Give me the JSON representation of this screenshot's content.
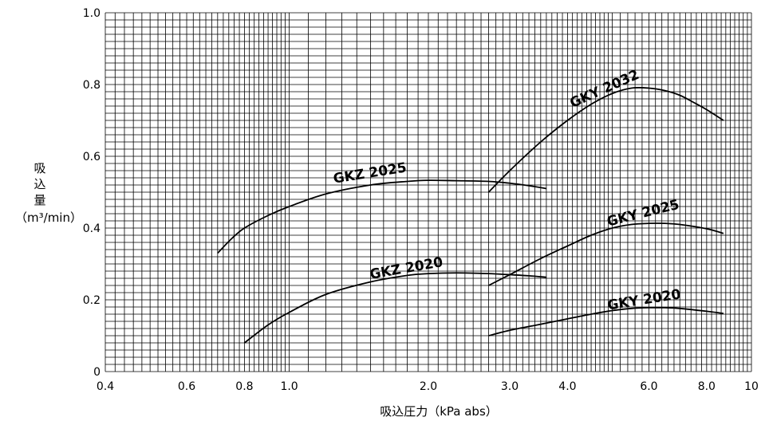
{
  "chart_data": {
    "type": "line",
    "xscale": "log",
    "xlim": [
      0.4,
      10
    ],
    "ylim": [
      0,
      1.0
    ],
    "grid": true,
    "xlabel": "吸込圧力（kPa abs）",
    "ylabel_lines": [
      "吸",
      "込",
      "量",
      "（m³/min）"
    ],
    "xticks": [
      0.4,
      0.6,
      0.8,
      1.0,
      2.0,
      3.0,
      4.0,
      6.0,
      8.0,
      10
    ],
    "xtick_labels": [
      "0.4",
      "0.6",
      "0.8",
      "1.0",
      "2.0",
      "3.0",
      "4.0",
      "6.0",
      "8.0",
      "10"
    ],
    "yticks": [
      0,
      0.2,
      0.4,
      0.6,
      0.8,
      1.0
    ],
    "ytick_labels": [
      "0",
      "0.2",
      "0.4",
      "0.6",
      "0.8",
      "1.0"
    ],
    "series": [
      {
        "name": "GKY 2032",
        "x": [
          2.7,
          3.0,
          3.5,
          4.0,
          4.5,
          5.0,
          5.5,
          6.0,
          6.5,
          7.0,
          7.5,
          8.0,
          8.7
        ],
        "y": [
          0.5,
          0.56,
          0.64,
          0.7,
          0.745,
          0.775,
          0.79,
          0.79,
          0.783,
          0.77,
          0.75,
          0.73,
          0.7
        ]
      },
      {
        "name": "GKZ 2025",
        "x": [
          0.7,
          0.75,
          0.8,
          0.9,
          1.0,
          1.2,
          1.5,
          1.8,
          2.0,
          2.3,
          2.7,
          3.0,
          3.3,
          3.6
        ],
        "y": [
          0.33,
          0.37,
          0.4,
          0.435,
          0.46,
          0.495,
          0.52,
          0.53,
          0.533,
          0.532,
          0.53,
          0.525,
          0.518,
          0.51
        ]
      },
      {
        "name": "GKY 2025",
        "x": [
          2.7,
          3.0,
          3.5,
          4.0,
          4.5,
          5.0,
          5.5,
          6.0,
          6.5,
          7.0,
          8.0,
          8.7
        ],
        "y": [
          0.24,
          0.27,
          0.315,
          0.35,
          0.38,
          0.4,
          0.41,
          0.413,
          0.413,
          0.41,
          0.398,
          0.385
        ]
      },
      {
        "name": "GKZ 2020",
        "x": [
          0.8,
          0.9,
          1.0,
          1.2,
          1.5,
          1.8,
          2.0,
          2.3,
          2.7,
          3.0,
          3.3,
          3.6
        ],
        "y": [
          0.08,
          0.13,
          0.165,
          0.215,
          0.25,
          0.268,
          0.273,
          0.275,
          0.273,
          0.27,
          0.267,
          0.263
        ]
      },
      {
        "name": "GKY 2020",
        "x": [
          2.7,
          3.0,
          3.5,
          4.0,
          4.5,
          5.0,
          5.5,
          6.0,
          6.5,
          7.0,
          8.0,
          8.7
        ],
        "y": [
          0.1,
          0.115,
          0.132,
          0.147,
          0.16,
          0.17,
          0.176,
          0.178,
          0.178,
          0.176,
          0.168,
          0.162
        ]
      }
    ]
  }
}
